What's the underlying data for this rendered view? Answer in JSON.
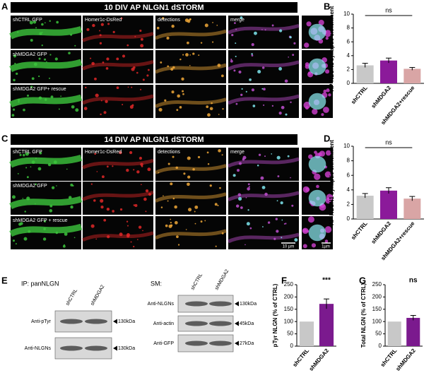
{
  "panel_letters": [
    "A",
    "B",
    "C",
    "D",
    "E",
    "F",
    "G"
  ],
  "microscopy": [
    {
      "title": "10 DIV AP NLGN1 dSTORM",
      "columns": [
        "shCTRL GFP",
        "Homer1c-DsRed",
        "detections",
        "merge"
      ],
      "row_labels": [
        "shMDGA2 GFP",
        "shMDGA2 GFP+ rescue"
      ]
    },
    {
      "title": "14 DIV AP NLGN1 dSTORM",
      "columns": [
        "shCTRL GFP",
        "Homer1c-DsRed",
        "detections",
        "merge"
      ],
      "row_labels": [
        "shMDGA2 GFP",
        "shMDGA2 GFP + rescue"
      ],
      "scale_bars": [
        "10 µm",
        "1µm"
      ]
    }
  ],
  "blots": [
    {
      "title": "IP: panNLGN",
      "lanes": [
        "shCTRL",
        "shMDGA2"
      ],
      "rows": [
        {
          "label": "Anti-pTyr",
          "size": "130kDa"
        },
        {
          "label": "Anti-NLGNs",
          "size": "130kDa"
        }
      ]
    },
    {
      "title": "SM:",
      "lanes": [
        "shCTRL",
        "shMDGA2"
      ],
      "rows": [
        {
          "label": "Anti-NLGNs",
          "size": "130kDa"
        },
        {
          "label": "Anti-actin",
          "size": "45kDa"
        },
        {
          "label": "Anti-GFP",
          "size": "27kDa"
        }
      ]
    }
  ],
  "chart_data": [
    {
      "type": "bar",
      "ylabel": "AP-NLGN1 synaptic enrichment",
      "categories": [
        "shCTRL",
        "shMDGA2",
        "shMDGA2+rescue"
      ],
      "values": [
        2.6,
        3.3,
        2.1
      ],
      "errors": [
        0.3,
        0.35,
        0.2
      ],
      "colors": [
        "#c8c8c8",
        "#8b1a9a",
        "#d9a5a5"
      ],
      "ylim": [
        0,
        10
      ],
      "yticks": [
        0,
        2,
        4,
        6,
        8,
        10
      ],
      "annotation": "ns"
    },
    {
      "type": "bar",
      "ylabel": "AP-NLGN1 synaptic enrichment",
      "categories": [
        "shCTRL",
        "shMDGA2",
        "shMDGA2+rescue"
      ],
      "values": [
        3.2,
        3.9,
        2.8
      ],
      "errors": [
        0.3,
        0.4,
        0.3
      ],
      "colors": [
        "#c8c8c8",
        "#8b1a9a",
        "#d9a5a5"
      ],
      "ylim": [
        0,
        10
      ],
      "yticks": [
        0,
        2,
        4,
        6,
        8,
        10
      ],
      "annotation": "ns"
    },
    {
      "type": "bar",
      "ylabel": "pTyr NLGN (% of CTRL)",
      "categories": [
        "shCTRL",
        "shMDGA2"
      ],
      "values": [
        100,
        172
      ],
      "errors": [
        0,
        20
      ],
      "colors": [
        "#c8c8c8",
        "#7b1a8e"
      ],
      "ylim": [
        0,
        250
      ],
      "yticks": [
        0,
        50,
        100,
        150,
        200,
        250
      ],
      "annotation": "***"
    },
    {
      "type": "bar",
      "ylabel": "Total NLGN (% of CTRL)",
      "categories": [
        "shCTRL",
        "shMDGA2"
      ],
      "values": [
        100,
        115
      ],
      "errors": [
        0,
        10
      ],
      "colors": [
        "#c8c8c8",
        "#7b1a8e"
      ],
      "ylim": [
        0,
        250
      ],
      "yticks": [
        0,
        50,
        100,
        150,
        200,
        250
      ],
      "annotation": "ns"
    }
  ]
}
